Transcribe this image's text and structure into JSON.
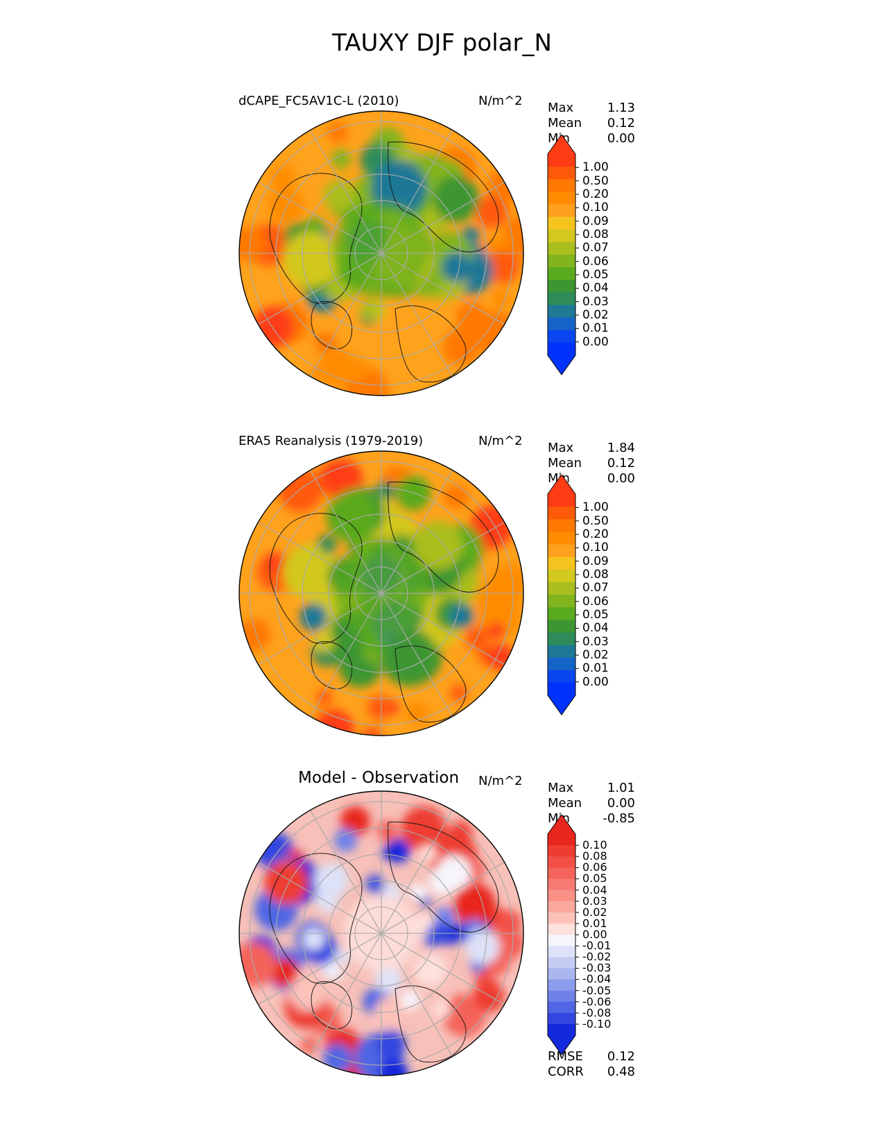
{
  "figure": {
    "title": "TAUXY DJF polar_N"
  },
  "chart_data": [
    {
      "type": "heatmap",
      "projection": "north-polar-stereographic",
      "title": "dCAPE_FC5AV1C-L (2010)",
      "units": "N/m^2",
      "stats": [
        {
          "label": "Max",
          "value": "1.13"
        },
        {
          "label": "Mean",
          "value": "0.12"
        },
        {
          "label": "Min",
          "value": "0.00"
        }
      ],
      "colorbar": {
        "levels": [
          "1.00",
          "0.50",
          "0.20",
          "0.10",
          "0.09",
          "0.08",
          "0.07",
          "0.06",
          "0.05",
          "0.04",
          "0.03",
          "0.02",
          "0.01",
          "0.00"
        ],
        "colors": [
          "#ff3c14",
          "#ff5a0a",
          "#ff7800",
          "#ff8c00",
          "#ffa01e",
          "#f5c31e",
          "#d2c81e",
          "#aabe1e",
          "#82b41e",
          "#5aaa1e",
          "#3c9632",
          "#2d8c5a",
          "#1e7896",
          "#1464c8",
          "#0a46f0",
          "#0032ff"
        ],
        "over_color": "#ff3c14",
        "under_color": "#0032ff"
      }
    },
    {
      "type": "heatmap",
      "projection": "north-polar-stereographic",
      "title": "ERA5 Reanalysis (1979-2019)",
      "units": "N/m^2",
      "stats": [
        {
          "label": "Max",
          "value": "1.84"
        },
        {
          "label": "Mean",
          "value": "0.12"
        },
        {
          "label": "Min",
          "value": "0.00"
        }
      ],
      "colorbar": {
        "levels": [
          "1.00",
          "0.50",
          "0.20",
          "0.10",
          "0.09",
          "0.08",
          "0.07",
          "0.06",
          "0.05",
          "0.04",
          "0.03",
          "0.02",
          "0.01",
          "0.00"
        ],
        "colors": [
          "#ff3c14",
          "#ff5a0a",
          "#ff7800",
          "#ff8c00",
          "#ffa01e",
          "#f5c31e",
          "#d2c81e",
          "#aabe1e",
          "#82b41e",
          "#5aaa1e",
          "#3c9632",
          "#2d8c5a",
          "#1e7896",
          "#1464c8",
          "#0a46f0",
          "#0032ff"
        ],
        "over_color": "#ff3c14",
        "under_color": "#0032ff"
      }
    },
    {
      "type": "heatmap",
      "projection": "north-polar-stereographic",
      "title": "Model - Observation",
      "units": "N/m^2",
      "stats": [
        {
          "label": "Max",
          "value": "1.01"
        },
        {
          "label": "Mean",
          "value": "0.00"
        },
        {
          "label": "Min",
          "value": "-0.85"
        }
      ],
      "extra_stats": [
        {
          "label": "RMSE",
          "value": "0.12"
        },
        {
          "label": "CORR",
          "value": "0.48"
        }
      ],
      "colorbar": {
        "levels": [
          "0.10",
          "0.08",
          "0.06",
          "0.05",
          "0.04",
          "0.03",
          "0.02",
          "0.01",
          "0.00",
          "-0.01",
          "-0.02",
          "-0.03",
          "-0.04",
          "-0.05",
          "-0.06",
          "-0.08",
          "-0.10"
        ],
        "colors": [
          "#e8261e",
          "#ee3c32",
          "#f25046",
          "#f4645a",
          "#f67a70",
          "#f89086",
          "#faa89e",
          "#fcc2ba",
          "#fee0dc",
          "#f5f5fb",
          "#dde2f8",
          "#c4ccf4",
          "#aab6f0",
          "#8c9cec",
          "#6e82e8",
          "#5066e4",
          "#3246e0",
          "#1428dc"
        ],
        "over_color": "#e8261e",
        "under_color": "#1428dc"
      }
    }
  ]
}
